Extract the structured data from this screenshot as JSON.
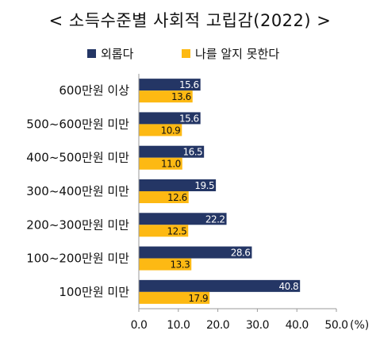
{
  "chart_data": {
    "type": "bar",
    "orientation": "horizontal",
    "title": "< 소득수준별 사회적 고립감(2022) >",
    "unit_label": "(%)",
    "categories": [
      "600만원 이상",
      "500~600만원 미만",
      "400~500만원 미만",
      "300~400만원 미만",
      "200~300만원 미만",
      "100~200만원 미만",
      "100만원 미만"
    ],
    "series": [
      {
        "name": "외롭다",
        "color": "#243665",
        "values": [
          15.6,
          15.6,
          16.5,
          19.5,
          22.2,
          28.6,
          40.8
        ],
        "labels": [
          "15.6",
          "15.6",
          "16.5",
          "19.5",
          "22.2",
          "28.6",
          "40.8"
        ]
      },
      {
        "name": "나를 알지 못한다",
        "color": "#FDB913",
        "values": [
          13.6,
          10.9,
          11.0,
          12.6,
          12.5,
          13.3,
          17.9
        ],
        "labels": [
          "13.6",
          "10.9",
          "11.0",
          "12.6",
          "12.5",
          "13.3",
          "17.9"
        ]
      }
    ],
    "xlim": [
      0,
      50
    ],
    "xticks": [
      "0.0",
      "10.0",
      "20.0",
      "30.0",
      "40.0",
      "50.0"
    ],
    "legend_position": "top",
    "grid": false
  }
}
